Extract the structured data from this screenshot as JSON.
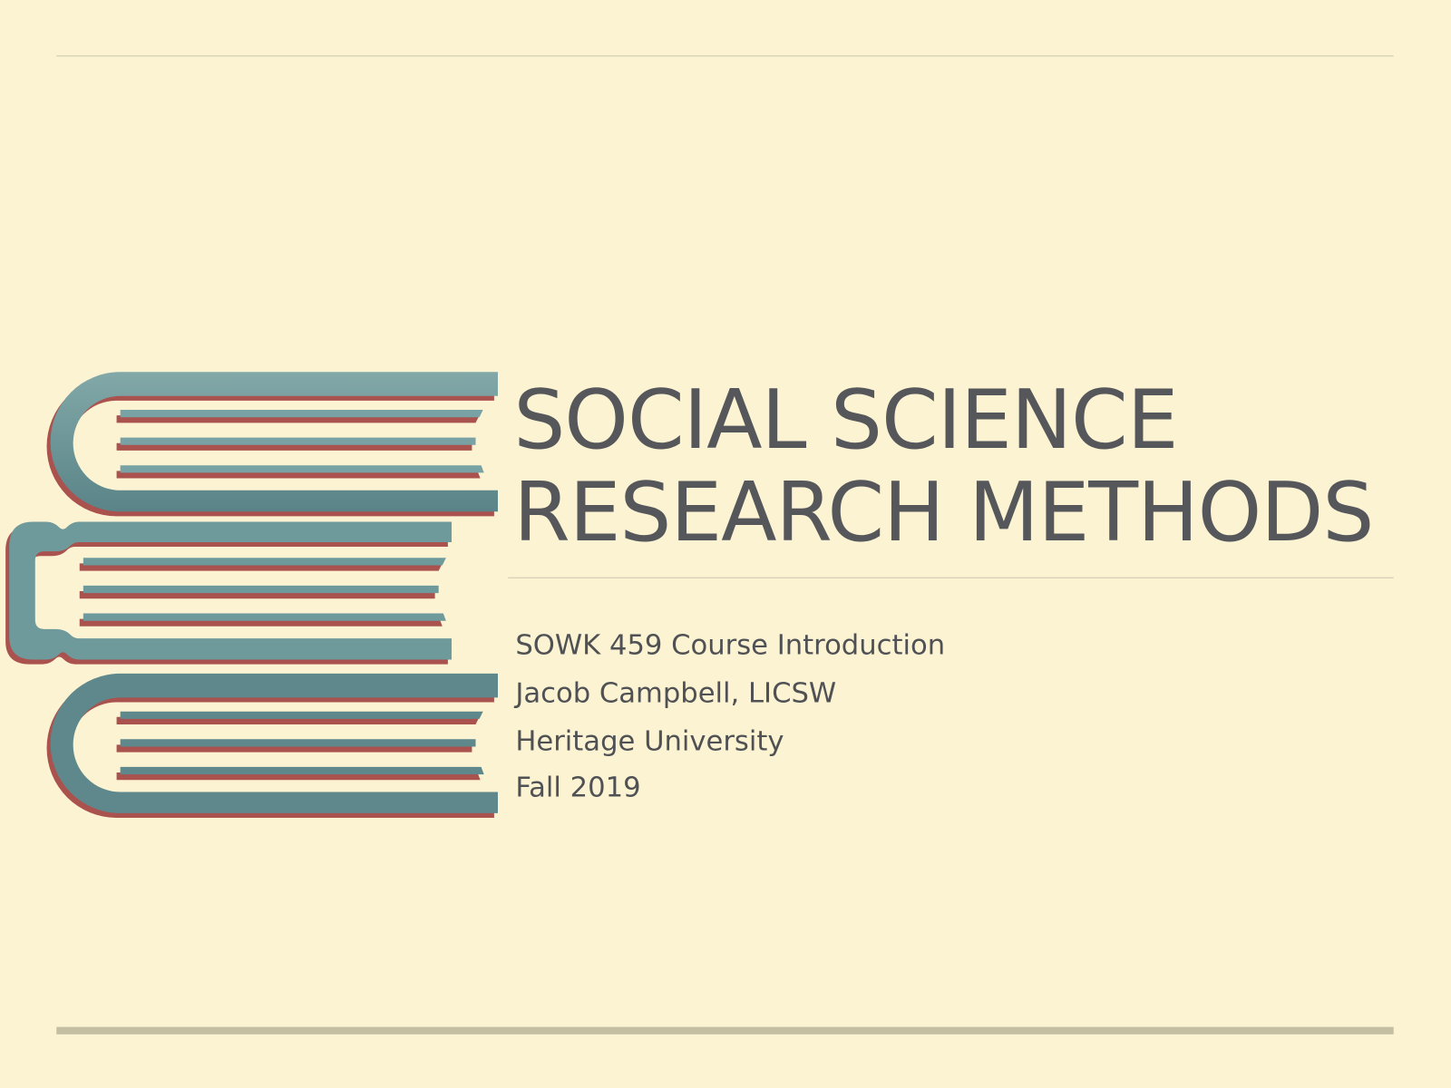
{
  "slide": {
    "title_lines": [
      "SOCIAL SCIENCE",
      "RESEARCH METHODS"
    ],
    "subtitle_lines": [
      "SOWK 459 Course Introduction",
      "Jacob Campbell, LICSW",
      "Heritage University",
      "Fall 2019"
    ]
  },
  "colors": {
    "background": "#fcf3d3",
    "book_teal": "#6e9a9c",
    "book_red": "#a9524e",
    "text": "#55575a",
    "rule": "#cbc6ae"
  },
  "illustration": {
    "icon": "stack-of-books-icon"
  }
}
